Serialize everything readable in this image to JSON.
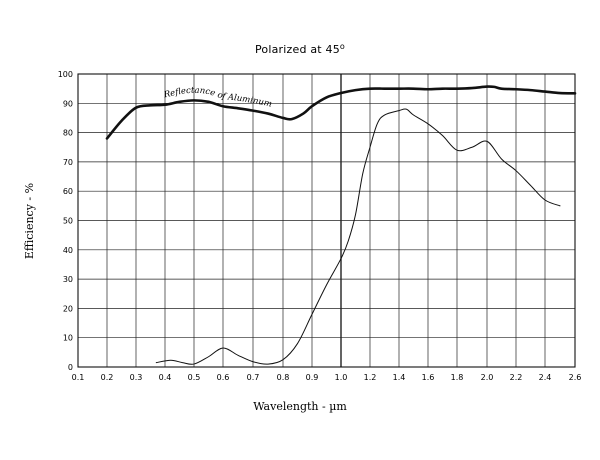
{
  "chart_data": {
    "type": "line",
    "title": "Polarized at 45",
    "title_superscript": "o",
    "xlabel": "Wavelength - µm",
    "ylabel": "Efficiency - %",
    "xlim": [
      0.1,
      2.6
    ],
    "ylim": [
      0,
      100
    ],
    "x_ticks": [
      0.1,
      0.2,
      0.3,
      0.4,
      0.5,
      0.6,
      0.7,
      0.8,
      0.9,
      1.0,
      1.2,
      1.4,
      1.6,
      1.8,
      2.0,
      2.2,
      2.4,
      2.6
    ],
    "x_tick_labels": [
      "0.1",
      "0.2",
      "0.3",
      "0.4",
      "0.5",
      "0.6",
      "0.7",
      "0.8",
      "0.9",
      "1.0",
      "1.2",
      "1.4",
      "1.6",
      "1.8",
      "2.0",
      "2.2",
      "2.4",
      "2.6"
    ],
    "y_ticks": [
      0,
      10,
      20,
      30,
      40,
      50,
      60,
      70,
      80,
      90,
      100
    ],
    "y_tick_labels": [
      "0",
      "10",
      "20",
      "30",
      "40",
      "50",
      "60",
      "70",
      "80",
      "90",
      "100"
    ],
    "grid": true,
    "annotations": [
      {
        "text": "Reflectance  of  Aluminum"
      }
    ],
    "series": [
      {
        "name": "",
        "style": "thick",
        "points": [
          [
            0.2,
            78
          ],
          [
            0.25,
            84
          ],
          [
            0.3,
            88.5
          ],
          [
            0.35,
            89.3
          ],
          [
            0.4,
            89.5
          ],
          [
            0.45,
            90.5
          ],
          [
            0.5,
            91
          ],
          [
            0.55,
            90.5
          ],
          [
            0.6,
            89
          ],
          [
            0.65,
            88.3
          ],
          [
            0.7,
            87.5
          ],
          [
            0.75,
            86.5
          ],
          [
            0.8,
            85
          ],
          [
            0.83,
            84.6
          ],
          [
            0.87,
            86.5
          ],
          [
            0.9,
            89
          ],
          [
            0.95,
            92
          ],
          [
            1.0,
            93.5
          ],
          [
            1.1,
            94.5
          ],
          [
            1.2,
            95
          ],
          [
            1.3,
            95
          ],
          [
            1.4,
            95
          ],
          [
            1.5,
            95
          ],
          [
            1.6,
            94.8
          ],
          [
            1.7,
            95
          ],
          [
            1.8,
            95
          ],
          [
            1.9,
            95.2
          ],
          [
            2.0,
            95.7
          ],
          [
            2.05,
            95.6
          ],
          [
            2.1,
            95
          ],
          [
            2.2,
            94.8
          ],
          [
            2.3,
            94.5
          ],
          [
            2.4,
            94
          ],
          [
            2.5,
            93.5
          ],
          [
            2.6,
            93.4
          ]
        ]
      },
      {
        "name": "",
        "style": "thin",
        "points": [
          [
            0.37,
            1.5
          ],
          [
            0.42,
            2.3
          ],
          [
            0.46,
            1.5
          ],
          [
            0.5,
            1
          ],
          [
            0.55,
            3.5
          ],
          [
            0.6,
            6.5
          ],
          [
            0.65,
            4
          ],
          [
            0.7,
            1.8
          ],
          [
            0.75,
            1
          ],
          [
            0.8,
            2.5
          ],
          [
            0.85,
            8
          ],
          [
            0.9,
            18
          ],
          [
            0.95,
            28
          ],
          [
            1.0,
            37
          ],
          [
            1.05,
            43
          ],
          [
            1.1,
            52
          ],
          [
            1.15,
            66
          ],
          [
            1.2,
            75
          ],
          [
            1.25,
            83
          ],
          [
            1.3,
            86
          ],
          [
            1.4,
            87.5
          ],
          [
            1.45,
            88
          ],
          [
            1.5,
            86
          ],
          [
            1.6,
            83
          ],
          [
            1.7,
            79
          ],
          [
            1.8,
            74
          ],
          [
            1.9,
            75
          ],
          [
            2.0,
            77
          ],
          [
            2.1,
            71
          ],
          [
            2.2,
            67
          ],
          [
            2.3,
            62
          ],
          [
            2.4,
            57
          ],
          [
            2.5,
            55
          ]
        ]
      }
    ]
  }
}
